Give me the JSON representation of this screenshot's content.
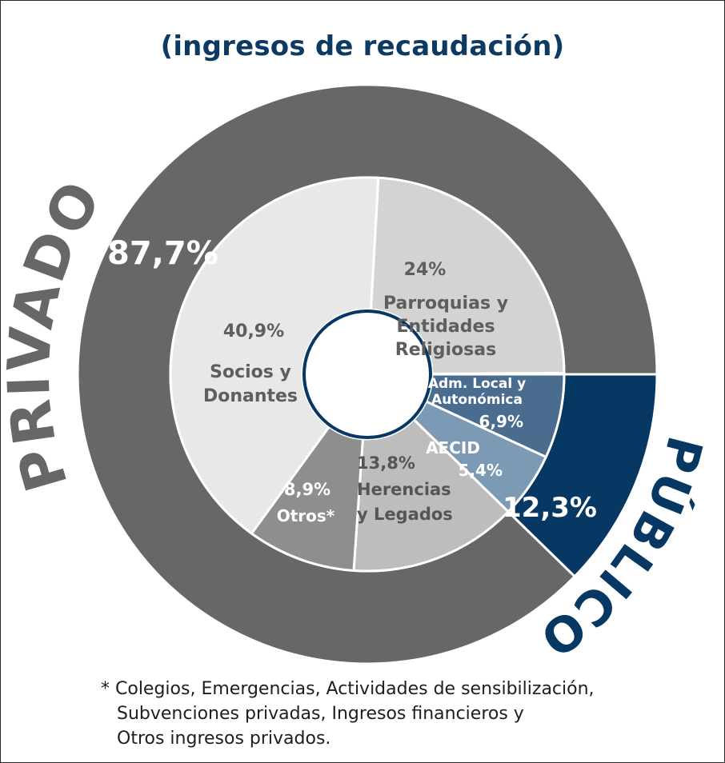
{
  "title": "(ingresos de recaudación)",
  "colors": {
    "privado": "#676767",
    "publico": "#073763",
    "socios": "#e8e8e8",
    "parroquias": "#d3d3d3",
    "adm_local": "#4a6d8f",
    "aecid": "#7d9ab4",
    "herencias": "#bdbdbd",
    "otros": "#8e8e8e",
    "title": "#0d3a63"
  },
  "chart_data": {
    "type": "pie",
    "subtype": "nested-donut",
    "title": "(ingresos de recaudación)",
    "outer_ring": [
      {
        "name": "PRIVADO",
        "value": 87.7,
        "label": "87,7%"
      },
      {
        "name": "PÚBLICO",
        "value": 12.3,
        "label": "12,3%"
      }
    ],
    "inner_ring": [
      {
        "group": "PÚBLICO",
        "lines": [
          "Adm. Local y",
          "Autonómica"
        ],
        "value": 6.9,
        "label": "6,9%"
      },
      {
        "group": "PÚBLICO",
        "lines": [
          "AECID"
        ],
        "value": 5.4,
        "label": "5,4%"
      },
      {
        "group": "PRIVADO",
        "lines": [
          "Herencias",
          "y Legados"
        ],
        "value": 13.8,
        "label": "13,8%"
      },
      {
        "group": "PRIVADO",
        "lines": [
          "Otros*"
        ],
        "value": 8.9,
        "label": "8,9%"
      },
      {
        "group": "PRIVADO",
        "lines": [
          "Socios y",
          "Donantes"
        ],
        "value": 40.9,
        "label": "40,9%"
      },
      {
        "group": "PRIVADO",
        "lines": [
          "Parroquias y",
          "Entidades",
          "Religiosas"
        ],
        "value": 24,
        "label": "24%"
      }
    ]
  },
  "footnote": [
    "* Colegios, Emergencias, Actividades de sensibilización,",
    "Subvenciones privadas, Ingresos financieros y",
    "Otros ingresos privados."
  ]
}
